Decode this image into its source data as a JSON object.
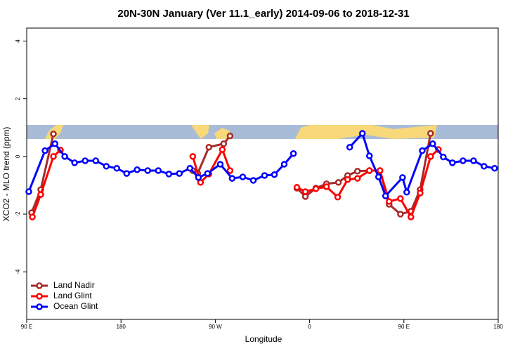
{
  "chart_data": {
    "type": "line",
    "title": "20N-30N January (Ver 11.1_early)   2014-09-06 to 2018-12-31",
    "x_label": "Longitude",
    "y_label": "XCO2 - MLO trend (ppm)",
    "xlim": [
      90,
      540
    ],
    "ylim": [
      -5.65,
      4.45
    ],
    "xticks": [
      {
        "value": 90,
        "label": "90 E"
      },
      180,
      {
        "value": 270,
        "label": "90 W"
      },
      {
        "value": 360,
        "label": "0"
      },
      {
        "value": 450,
        "label": "90 E"
      },
      {
        "value": 540,
        "label": "180"
      }
    ],
    "yticks": [
      -4,
      -2,
      0,
      2,
      4
    ],
    "legend": "bottom-left",
    "series": [
      {
        "name": "Land Nadir",
        "color": "#a52a2a",
        "x": [
          94.7,
          103.4,
          115.5,
          185,
          248.5,
          253.2,
          263.9,
          278,
          284.1,
          315,
          347.9,
          356,
          366,
          376.1,
          387.5,
          396.3,
          405.7,
          417.1,
          427.2,
          435.9,
          446.7,
          456.7,
          465.5,
          475.5
        ],
        "values": [
          -1.95,
          -1.15,
          0.78,
          null,
          -0.49,
          -0.59,
          0.32,
          0.44,
          0.71,
          null,
          -1.1,
          -1.39,
          -1.1,
          -0.95,
          -0.9,
          -0.66,
          -0.51,
          -0.49,
          -0.49,
          -1.66,
          -2.0,
          -1.9,
          -1.15,
          0.8
        ]
      },
      {
        "name": "Land Glint",
        "color": "#ff0000",
        "x": [
          95.4,
          103.4,
          115.5,
          122.2,
          185,
          248.5,
          255.9,
          263.9,
          276.7,
          284.1,
          315,
          347.9,
          356,
          366,
          376.1,
          386.8,
          396.3,
          405.7,
          417.1,
          427.2,
          435.9,
          446.7,
          456.7,
          465.5,
          475.5,
          482.9
        ],
        "values": [
          -2.1,
          -1.32,
          0,
          0.22,
          null,
          0,
          -0.9,
          -0.61,
          0.24,
          -0.49,
          null,
          -1.07,
          -1.22,
          -1.12,
          -1.05,
          -1.41,
          -0.8,
          -0.76,
          -0.49,
          -0.49,
          -1.56,
          -1.46,
          -2.1,
          -1.27,
          0,
          0.24
        ]
      },
      {
        "name": "Ocean Glint",
        "color": "#0000ff",
        "x": [
          92,
          107.5,
          117,
          126.3,
          135.7,
          145.8,
          155.9,
          166,
          176,
          185.4,
          195.4,
          205.5,
          215.6,
          225.7,
          235.7,
          245.8,
          253.9,
          262.6,
          274.7,
          286.1,
          296.2,
          306.3,
          317,
          326.4,
          335.8,
          344.6,
          370,
          398.3,
          410.4,
          417.1,
          425.8,
          432.5,
          448.7,
          452.7,
          467.5,
          477.5,
          487.6,
          496.3,
          506.4,
          516.5,
          526.5,
          536.6
        ],
        "values": [
          -1.22,
          0.2,
          0.44,
          0,
          -0.22,
          -0.15,
          -0.15,
          -0.34,
          -0.41,
          -0.59,
          -0.46,
          -0.49,
          -0.49,
          -0.61,
          -0.59,
          -0.41,
          -0.73,
          -0.59,
          -0.27,
          -0.76,
          -0.71,
          -0.83,
          -0.66,
          -0.63,
          -0.27,
          0.1,
          null,
          0.32,
          0.8,
          0.02,
          -0.71,
          -1.37,
          -0.73,
          -1.24,
          0.2,
          0.44,
          -0.02,
          -0.22,
          -0.15,
          -0.15,
          -0.34,
          -0.41
        ]
      }
    ]
  }
}
